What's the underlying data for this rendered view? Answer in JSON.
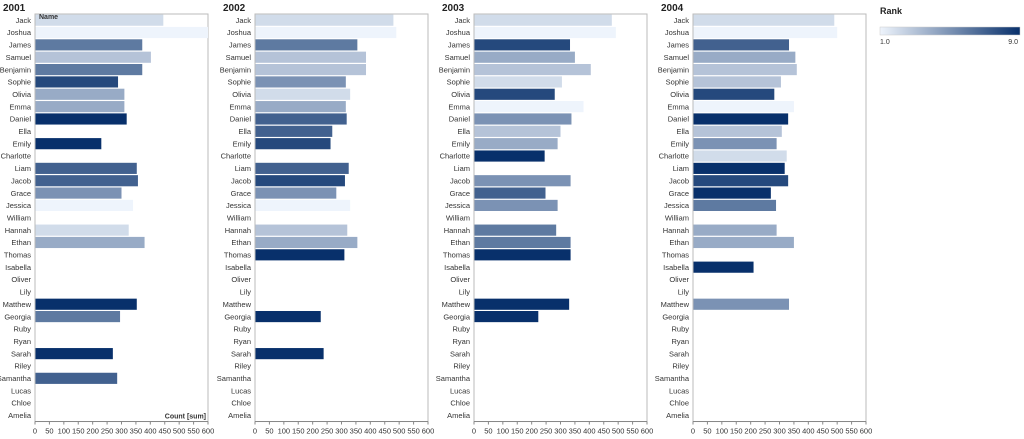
{
  "chart_data": {
    "type": "bar",
    "orientation": "horizontal",
    "x_label": "Count [sum]",
    "y_label": "Name",
    "xlim": [
      0,
      600
    ],
    "x_ticks": [
      0,
      50,
      100,
      150,
      200,
      250,
      300,
      350,
      400,
      450,
      500,
      550,
      600
    ],
    "color_by": "Rank",
    "color_range": [
      1.0,
      9.0
    ],
    "colors": {
      "low": "#eef4fc",
      "high": "#08306b"
    },
    "legend": {
      "title": "Rank",
      "min_label": "1.0",
      "max_label": "9.0",
      "position": "top-right"
    },
    "categories": [
      "Jack",
      "Joshua",
      "James",
      "Samuel",
      "Benjamin",
      "Sophie",
      "Olivia",
      "Emma",
      "Daniel",
      "Ella",
      "Emily",
      "Charlotte",
      "Liam",
      "Jacob",
      "Grace",
      "Jessica",
      "William",
      "Hannah",
      "Ethan",
      "Thomas",
      "Isabella",
      "Oliver",
      "Lily",
      "Matthew",
      "Georgia",
      "Ruby",
      "Ryan",
      "Sarah",
      "Riley",
      "Samantha",
      "Lucas",
      "Chloe",
      "Amelia"
    ],
    "panels": [
      {
        "title": "2001",
        "counts": [
          445,
          600,
          372,
          402,
          372,
          288,
          310,
          310,
          318,
          null,
          230,
          null,
          353,
          357,
          300,
          340,
          null,
          325,
          380,
          null,
          null,
          null,
          null,
          353,
          295,
          null,
          null,
          270,
          null,
          285,
          null,
          null,
          null
        ],
        "ranks": [
          2,
          1,
          6,
          3,
          6,
          8,
          4,
          4,
          9,
          null,
          9,
          null,
          7,
          7,
          5,
          1,
          null,
          2,
          4,
          null,
          null,
          null,
          null,
          9,
          6,
          null,
          null,
          9,
          null,
          7,
          null,
          null,
          null
        ]
      },
      {
        "title": "2002",
        "counts": [
          480,
          490,
          355,
          385,
          385,
          315,
          330,
          315,
          318,
          268,
          262,
          null,
          325,
          312,
          282,
          330,
          null,
          320,
          355,
          310,
          null,
          null,
          null,
          null,
          228,
          null,
          null,
          238,
          null,
          null,
          null,
          null,
          null
        ],
        "ranks": [
          2,
          1,
          6,
          3,
          3,
          5,
          2,
          4,
          7,
          7,
          8,
          null,
          7,
          8,
          5,
          1,
          null,
          3,
          4,
          9,
          null,
          null,
          null,
          null,
          9,
          null,
          null,
          9,
          null,
          null,
          null,
          null,
          null
        ]
      },
      {
        "title": "2003",
        "counts": [
          478,
          492,
          333,
          350,
          405,
          305,
          280,
          380,
          338,
          300,
          290,
          245,
          null,
          335,
          248,
          290,
          null,
          285,
          335,
          335,
          null,
          null,
          null,
          330,
          223,
          null,
          null,
          null,
          null,
          null,
          null,
          null,
          null
        ],
        "ranks": [
          2,
          1,
          8,
          4,
          3,
          2,
          8,
          1,
          5,
          3,
          4,
          9,
          null,
          5,
          7,
          5,
          null,
          6,
          6,
          9,
          null,
          null,
          null,
          9,
          9,
          null,
          null,
          null,
          null,
          null,
          null,
          null,
          null
        ]
      },
      {
        "title": "2004",
        "counts": [
          490,
          500,
          333,
          355,
          360,
          305,
          282,
          350,
          330,
          308,
          290,
          325,
          318,
          330,
          270,
          288,
          null,
          290,
          350,
          null,
          210,
          null,
          null,
          333,
          null,
          null,
          null,
          null,
          null,
          null,
          null,
          null,
          null
        ],
        "ranks": [
          2,
          1,
          7,
          4,
          3,
          3,
          8,
          1,
          9,
          3,
          5,
          2,
          9,
          8,
          9,
          6,
          null,
          4,
          4,
          null,
          9,
          null,
          null,
          5,
          null,
          null,
          null,
          null,
          null,
          null,
          null,
          null,
          null
        ]
      }
    ]
  }
}
